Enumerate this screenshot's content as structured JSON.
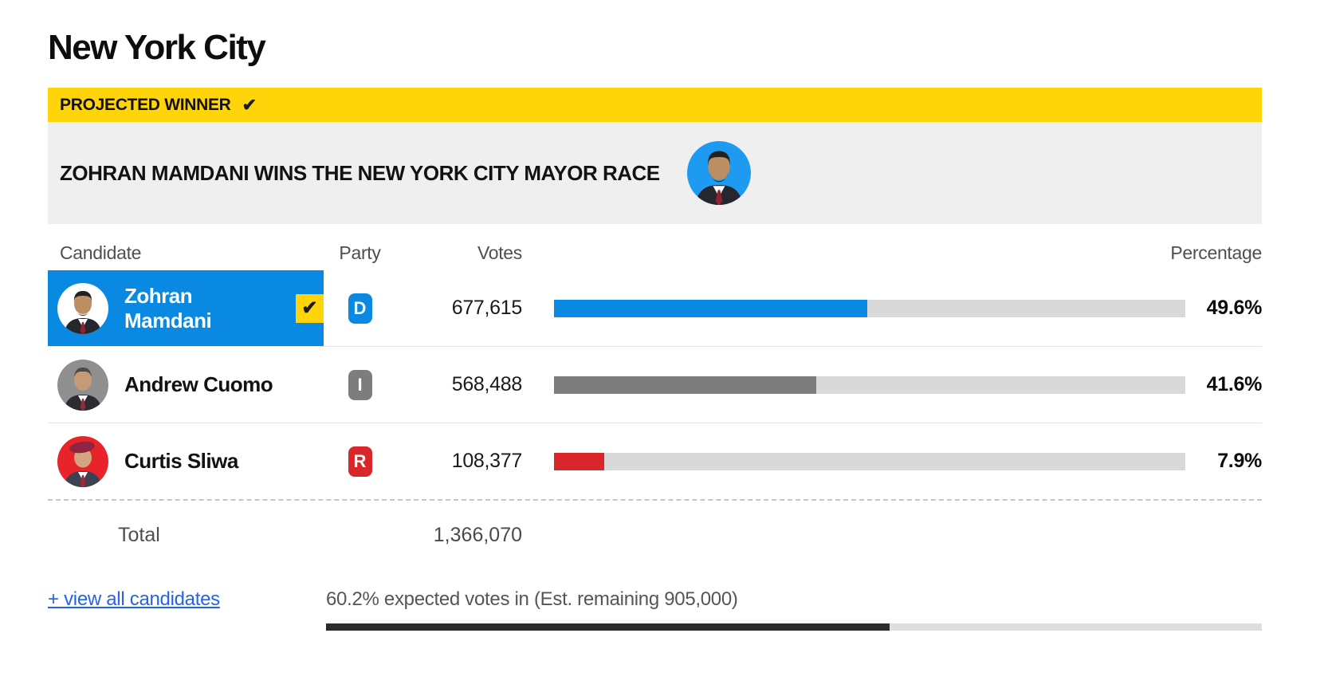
{
  "page": {
    "title": "New York City"
  },
  "banner": {
    "label": "PROJECTED WINNER"
  },
  "announcement": {
    "text": "ZOHRAN MAMDANI WINS THE NEW YORK CITY MAYOR RACE"
  },
  "icons": {
    "banner_check": "✔",
    "winner_check": "✔"
  },
  "colors": {
    "banner_yellow": "#FFD408",
    "winner_highlight": "#0989E2",
    "democrat_blue": "#0989E2",
    "independent_gray": "#7D7D7D",
    "republican_red": "#D8272B",
    "bar_track_gray": "#D9D9D9",
    "progress_dark": "#2B2B2B",
    "link_blue": "#2563EB",
    "announce_avatar_blue": "#1D9BF0"
  },
  "table": {
    "headers": {
      "candidate": "Candidate",
      "party": "Party",
      "votes": "Votes",
      "percentage": "Percentage"
    },
    "rows": [
      {
        "name": "Zohran Mamdani",
        "party": "D",
        "votes": "677,615",
        "pct": "49.6%",
        "pct_value": 49.6,
        "color": "#0989E2",
        "winner": true
      },
      {
        "name": "Andrew Cuomo",
        "party": "I",
        "votes": "568,488",
        "pct": "41.6%",
        "pct_value": 41.6,
        "color": "#7D7D7D",
        "winner": false
      },
      {
        "name": "Curtis Sliwa",
        "party": "R",
        "votes": "108,377",
        "pct": "7.9%",
        "pct_value": 7.9,
        "color": "#D8272B",
        "winner": false
      }
    ],
    "total_label": "Total",
    "total_votes": "1,366,070"
  },
  "footer": {
    "view_all_label": "+ view all candidates",
    "expected_text": "60.2% expected votes in (Est. remaining 905,000)",
    "expected_pct": 60.2
  },
  "chart_data": {
    "type": "bar",
    "title": "New York City mayor race results",
    "categories": [
      "Zohran Mamdani",
      "Andrew Cuomo",
      "Curtis Sliwa"
    ],
    "series": [
      {
        "name": "Votes",
        "values": [
          677615,
          568488,
          108377
        ]
      },
      {
        "name": "Percentage",
        "values": [
          49.6,
          41.6,
          7.9
        ]
      }
    ],
    "parties": [
      "D",
      "I",
      "R"
    ],
    "bar_colors": [
      "#0989E2",
      "#7D7D7D",
      "#D8272B"
    ],
    "xlim": [
      0,
      100
    ],
    "total_votes": 1366070,
    "expected_votes_in_pct": 60.2,
    "estimated_remaining_votes": 905000,
    "projected_winner": "Zohran Mamdani",
    "legend_position": "none",
    "grid": false
  }
}
